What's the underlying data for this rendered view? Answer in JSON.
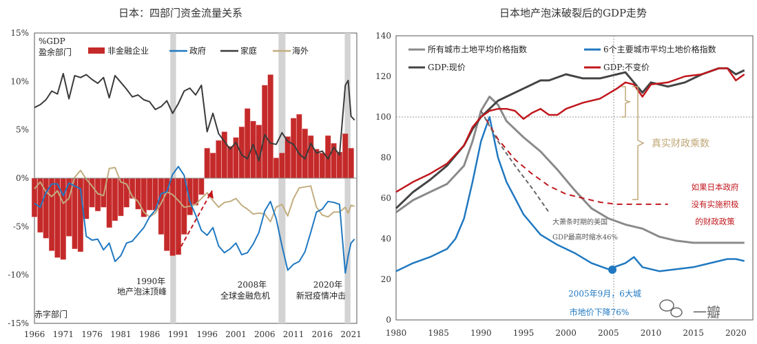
{
  "chart_data": [
    {
      "type": "line",
      "title": "日本：四部门资金流量关系",
      "ylabel": "%GDP",
      "ylim": [
        -15,
        15
      ],
      "yticks": [
        "15%",
        "10%",
        "5%",
        "0%",
        "-5%",
        "-10%",
        "-15%"
      ],
      "xrange": [
        1966,
        2022
      ],
      "xticks": [
        "1966",
        "1971",
        "1976",
        "1981",
        "1986",
        "1991",
        "1996",
        "2001",
        "2006",
        "2011",
        "2016",
        "2021"
      ],
      "top_label": "盈余部门",
      "bottom_label": "赤字部门",
      "legend": [
        "非金融企业",
        "政府",
        "家庭",
        "海外"
      ],
      "shaded_periods": [
        [
          1989.6,
          1990.6
        ],
        [
          2008.4,
          2009.6
        ],
        [
          2019.9,
          2020.9
        ]
      ],
      "annotations": [
        {
          "year": "1990年",
          "text": "地产泡沫顶峰"
        },
        {
          "year": "2008年",
          "text": "全球金融危机"
        },
        {
          "year": "2020年",
          "text": "新冠疫情冲击"
        }
      ],
      "colors": {
        "corp": "#c42a2a",
        "gov": "#1f78c1",
        "house": "#3a3a3a",
        "overseas": "#c2ad80"
      },
      "series": [
        {
          "name": "家庭",
          "x": [
            1966,
            1967,
            1968,
            1969,
            1970,
            1971,
            1972,
            1973,
            1974,
            1975,
            1976,
            1977,
            1978,
            1979,
            1980,
            1981,
            1982,
            1983,
            1984,
            1985,
            1986,
            1987,
            1988,
            1989,
            1990,
            1991,
            1992,
            1993,
            1994,
            1995,
            1996,
            1997,
            1998,
            1999,
            2000,
            2001,
            2002,
            2003,
            2004,
            2005,
            2006,
            2007,
            2008,
            2009,
            2010,
            2011,
            2012,
            2013,
            2014,
            2015,
            2016,
            2017,
            2018,
            2019,
            2020,
            2020.5,
            2021,
            2021.6
          ],
          "y": [
            7.3,
            7.6,
            8.1,
            9.0,
            8.7,
            10.8,
            8.2,
            10.6,
            10.4,
            10.7,
            10.2,
            9.8,
            10.4,
            8.3,
            10.6,
            9.9,
            9.2,
            8.4,
            8.6,
            8.1,
            7.9,
            7.1,
            7.4,
            8.0,
            6.7,
            7.7,
            9.0,
            9.3,
            8.6,
            9.6,
            4.8,
            6.7,
            4.6,
            3.8,
            3.0,
            3.7,
            2.4,
            2.0,
            3.5,
            1.8,
            4.5,
            3.6,
            3.5,
            4.7,
            3.8,
            3.5,
            2.5,
            2.0,
            3.6,
            2.6,
            2.8,
            2.0,
            3.2,
            2.4,
            9.6,
            10.1,
            6.4,
            6.0
          ]
        },
        {
          "name": "政府",
          "x": [
            1966,
            1967,
            1968,
            1969,
            1970,
            1971,
            1972,
            1973,
            1974,
            1975,
            1976,
            1977,
            1978,
            1979,
            1980,
            1981,
            1982,
            1983,
            1984,
            1985,
            1986,
            1987,
            1988,
            1989,
            1990,
            1991,
            1992,
            1993,
            1994,
            1995,
            1996,
            1997,
            1998,
            1999,
            2000,
            2001,
            2002,
            2003,
            2004,
            2005,
            2006,
            2007,
            2008,
            2009,
            2010,
            2011,
            2012,
            2013,
            2014,
            2015,
            2016,
            2017,
            2018,
            2019,
            2020,
            2020.5,
            2021,
            2021.6
          ],
          "y": [
            -2.6,
            -3.0,
            -1.5,
            -0.6,
            -0.6,
            -1.8,
            -0.5,
            -0.8,
            -1.1,
            -6.0,
            -6.4,
            -6.3,
            -7.4,
            -6.7,
            -8.6,
            -8.0,
            -6.7,
            -6.5,
            -5.8,
            -5.1,
            -4.0,
            -3.3,
            -1.6,
            -1.4,
            0.4,
            1.2,
            0.3,
            -2.4,
            -3.8,
            -5.4,
            -5.9,
            -5.1,
            -7.0,
            -7.7,
            -7.3,
            -6.7,
            -7.9,
            -7.7,
            -6.8,
            -5.6,
            -3.4,
            -2.4,
            -4.2,
            -7.0,
            -9.5,
            -8.9,
            -8.6,
            -7.6,
            -5.6,
            -3.5,
            -3.2,
            -2.4,
            -2.5,
            -2.7,
            -9.8,
            -8.0,
            -6.7,
            -6.3
          ]
        },
        {
          "name": "海外",
          "x": [
            1966,
            1967,
            1968,
            1969,
            1970,
            1971,
            1972,
            1973,
            1974,
            1975,
            1976,
            1977,
            1978,
            1979,
            1980,
            1981,
            1982,
            1983,
            1984,
            1985,
            1986,
            1987,
            1988,
            1989,
            1990,
            1991,
            1992,
            1993,
            1994,
            1995,
            1996,
            1997,
            1998,
            1999,
            2000,
            2001,
            2002,
            2003,
            2004,
            2005,
            2006,
            2007,
            2008,
            2009,
            2010,
            2011,
            2012,
            2013,
            2014,
            2015,
            2016,
            2017,
            2018,
            2019,
            2020,
            2020.5,
            2021,
            2021.6
          ],
          "y": [
            -1.1,
            -0.4,
            -1.4,
            -1.9,
            -1.3,
            -2.6,
            -2.1,
            0.1,
            0.8,
            -0.1,
            -0.8,
            -1.6,
            -1.8,
            1.0,
            1.1,
            -0.4,
            -0.6,
            -1.9,
            -2.4,
            -3.5,
            -4.0,
            -3.6,
            -2.6,
            -1.4,
            -1.7,
            -2.3,
            -3.0,
            -2.9,
            -2.7,
            -2.1,
            -1.5,
            -2.3,
            -3.0,
            -2.5,
            -2.4,
            -2.1,
            -2.8,
            -3.2,
            -3.7,
            -3.6,
            -3.7,
            -4.5,
            -3.0,
            -2.7,
            -3.9,
            -2.1,
            -1.0,
            -0.9,
            -0.8,
            -3.0,
            -3.8,
            -4.0,
            -3.5,
            -3.5,
            -3.0,
            -3.6,
            -2.8,
            -2.9
          ]
        },
        {
          "name": "非金融企业",
          "type": "bar",
          "x": [
            1966,
            1967,
            1968,
            1969,
            1970,
            1971,
            1972,
            1973,
            1974,
            1975,
            1976,
            1977,
            1978,
            1979,
            1980,
            1981,
            1982,
            1983,
            1984,
            1985,
            1986,
            1987,
            1988,
            1989,
            1990,
            1991,
            1992,
            1993,
            1994,
            1995,
            1996,
            1997,
            1998,
            1999,
            2000,
            2001,
            2002,
            2003,
            2004,
            2005,
            2006,
            2007,
            2008,
            2009,
            2010,
            2011,
            2012,
            2013,
            2014,
            2015,
            2016,
            2017,
            2018,
            2019,
            2020,
            2021
          ],
          "y": [
            -4.0,
            -5.6,
            -6.2,
            -7.5,
            -8.2,
            -8.4,
            -6.0,
            -7.3,
            -7.6,
            -4.2,
            -3.0,
            -3.4,
            -3.0,
            -5.1,
            -4.4,
            -3.9,
            -3.0,
            -2.1,
            -3.2,
            -4.0,
            -3.3,
            -3.3,
            -5.8,
            -7.5,
            -8.0,
            -7.9,
            -5.8,
            -3.8,
            -2.8,
            -1.7,
            3.1,
            2.6,
            3.9,
            4.8,
            3.3,
            4.2,
            5.3,
            7.2,
            5.9,
            5.5,
            9.6,
            10.7,
            2.1,
            2.6,
            4.3,
            6.2,
            6.6,
            5.1,
            4.4,
            3.0,
            2.6,
            4.4,
            3.6,
            2.7,
            4.6,
            3.1
          ]
        }
      ]
    },
    {
      "type": "line",
      "title": "日本地产泡沫破裂后的GDP走势",
      "ylim": [
        0,
        140
      ],
      "yticks": [
        "140",
        "120",
        "100",
        "80",
        "60",
        "40",
        "20",
        "0"
      ],
      "xrange": [
        1980,
        2022
      ],
      "xticks": [
        "1980",
        "1985",
        "1990",
        "1995",
        "2000",
        "2005",
        "2010",
        "2015",
        "2020"
      ],
      "legend": [
        "所有城市土地平均价格指数",
        "6个主要城市平均土地价格指数",
        "GDP:现价",
        "GDP:不变价"
      ],
      "annotations": {
        "multiplier": "真实财政乘数",
        "counterfactual": [
          "如果日本政府",
          "没有实施积极",
          "的财政政策"
        ],
        "depression": [
          "大萧条时期的美国",
          "GDP最高时缩水46%"
        ],
        "land_drop": [
          "2005年9月，6大城",
          "市地价下降76%"
        ],
        "watermark": "一瓣"
      },
      "colors": {
        "all_land": "#8a8a8a",
        "six_city": "#1f78c1",
        "gdp_nominal": "#444444",
        "gdp_real": "#c0171d",
        "gold": "#c0a878"
      },
      "series": [
        {
          "name": "所有城市土地平均价格指数",
          "x": [
            1980,
            1982,
            1984,
            1986,
            1988,
            1989,
            1990,
            1991,
            1992,
            1993,
            1995,
            1997,
            1999,
            2001,
            2003,
            2005,
            2007,
            2009,
            2011,
            2013,
            2015,
            2017,
            2019,
            2021
          ],
          "y": [
            53,
            59,
            63,
            67,
            76,
            88,
            103,
            110,
            106,
            98,
            90,
            83,
            74,
            64,
            55,
            50,
            47,
            45,
            41,
            39,
            38,
            38,
            38,
            38
          ]
        },
        {
          "name": "6个主要城市平均土地价格指数",
          "x": [
            1980,
            1982,
            1984,
            1986,
            1987,
            1988,
            1989,
            1990,
            1991,
            1992,
            1993,
            1994,
            1995,
            1997,
            1999,
            2001,
            2003,
            2005,
            2007,
            2008,
            2009,
            2011,
            2013,
            2015,
            2017,
            2019,
            2020,
            2021
          ],
          "y": [
            24,
            28,
            31,
            35,
            40,
            50,
            68,
            88,
            100,
            80,
            68,
            60,
            52,
            42,
            37,
            33,
            28,
            25,
            28,
            31,
            26,
            24,
            25,
            26,
            28,
            30,
            30,
            29
          ]
        },
        {
          "name": "GDP:现价",
          "x": [
            1980,
            1982,
            1984,
            1986,
            1988,
            1989,
            1990,
            1991,
            1992,
            1993,
            1995,
            1997,
            1998,
            2000,
            2002,
            2004,
            2006,
            2007,
            2008,
            2009,
            2010,
            2012,
            2014,
            2016,
            2018,
            2019,
            2020,
            2021
          ],
          "y": [
            55,
            63,
            69,
            76,
            86,
            94,
            100,
            104,
            108,
            110,
            114,
            118,
            118,
            121,
            119,
            119,
            121,
            122,
            117,
            112,
            117,
            115,
            117,
            121,
            124,
            124,
            121,
            123
          ]
        },
        {
          "name": "GDP:不变价",
          "x": [
            1980,
            1982,
            1984,
            1986,
            1988,
            1989,
            1990,
            1991,
            1992,
            1993,
            1994,
            1995,
            1996,
            1997,
            1998,
            1999,
            2000,
            2002,
            2004,
            2006,
            2007,
            2008,
            2009,
            2010,
            2012,
            2014,
            2016,
            2018,
            2019,
            2020,
            2021
          ],
          "y": [
            63,
            68,
            72,
            77,
            86,
            95,
            100,
            103,
            104,
            104,
            103,
            99,
            102,
            104,
            101,
            101,
            104,
            107,
            109,
            114,
            117,
            116,
            110,
            116,
            117,
            120,
            121,
            124,
            124,
            118,
            121
          ]
        },
        {
          "name": "如果日本政府没有实施积极的财政政策",
          "style": "dashed",
          "x": [
            1990,
            1992,
            1994,
            1996,
            1998,
            2000,
            2002,
            2004,
            2006,
            2008,
            2010,
            2012
          ],
          "y": [
            103,
            89,
            79,
            72,
            66,
            62,
            60,
            58,
            57,
            57,
            57,
            57
          ]
        },
        {
          "name": "大萧条时期的美国",
          "style": "dashed",
          "x": [
            1990,
            1992,
            1994,
            1996,
            1998
          ],
          "y": [
            103,
            88,
            76,
            65,
            53
          ]
        }
      ]
    }
  ]
}
